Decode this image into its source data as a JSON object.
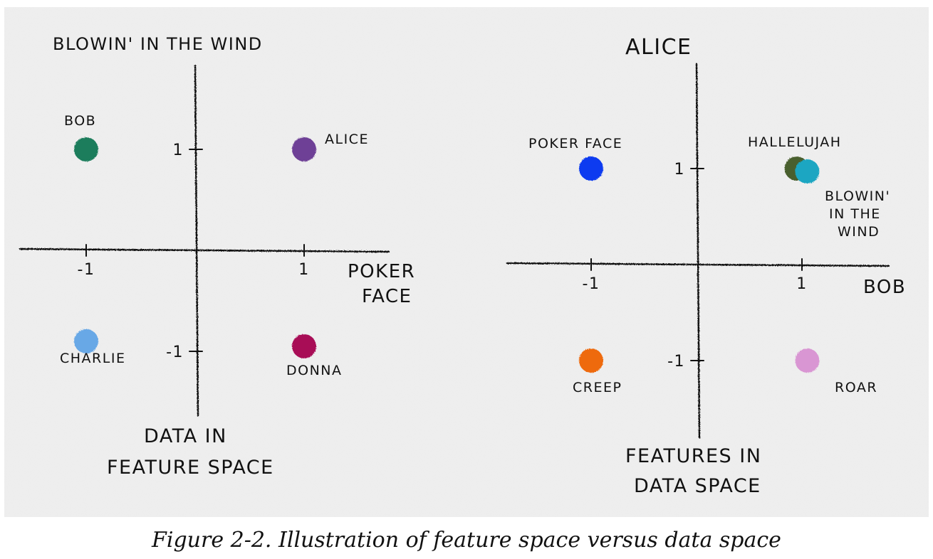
{
  "caption": "Figure 2-2. Illustration of feature space versus data space",
  "chart_data": [
    {
      "type": "scatter",
      "title": "DATA IN FEATURE SPACE",
      "title_lines": [
        "DATA  IN",
        "FEATURE SPACE"
      ],
      "xlabel": "POKER FACE",
      "xlabel_lines": [
        "POKER",
        "FACE"
      ],
      "ylabel": "BLOWIN' IN THE WIND",
      "xlim": [
        -1.5,
        1.5
      ],
      "ylim": [
        -1.6,
        1.8
      ],
      "x_ticks": [
        {
          "value": -1,
          "label": "-1"
        },
        {
          "value": 1,
          "label": "1"
        }
      ],
      "y_ticks": [
        {
          "value": 1,
          "label": "1"
        },
        {
          "value": -1,
          "label": "-1"
        }
      ],
      "points": [
        {
          "label": "BOB",
          "x": -1.0,
          "y": 1.0,
          "color": "#1e7d5c"
        },
        {
          "label": "ALICE",
          "x": 1.0,
          "y": 1.0,
          "color": "#6e3f96"
        },
        {
          "label": "CHARLIE",
          "x": -1.0,
          "y": -0.9,
          "color": "#68a8e6"
        },
        {
          "label": "DONNA",
          "x": 1.0,
          "y": -0.95,
          "color": "#a80b57"
        }
      ],
      "grid": false
    },
    {
      "type": "scatter",
      "title": "FEATURES IN DATA SPACE",
      "title_lines": [
        "FEATURES IN",
        "DATA SPACE"
      ],
      "xlabel": "BOB",
      "ylabel": "ALICE",
      "xlim": [
        -1.8,
        1.8
      ],
      "ylim": [
        -1.8,
        2.0
      ],
      "x_ticks": [
        {
          "value": -1,
          "label": "-1"
        },
        {
          "value": 1,
          "label": "1"
        }
      ],
      "y_ticks": [
        {
          "value": 1,
          "label": "1"
        },
        {
          "value": -1,
          "label": "-1"
        }
      ],
      "points": [
        {
          "label": "POKER FACE",
          "x": -1.0,
          "y": 1.0,
          "color": "#0a3bf0"
        },
        {
          "label": "HALLELUJAH",
          "x": 0.95,
          "y": 1.0,
          "color": "#485f2d"
        },
        {
          "label": "BLOWIN' IN THE WIND",
          "label_lines": [
            "BLOWIN'",
            "IN THE",
            "WIND"
          ],
          "x": 1.05,
          "y": 0.97,
          "color": "#1aa6c2"
        },
        {
          "label": "CREEP",
          "x": -1.0,
          "y": -1.0,
          "color": "#ee6a0f"
        },
        {
          "label": "ROAR",
          "x": 1.05,
          "y": -1.0,
          "color": "#d996d3"
        }
      ],
      "grid": false
    }
  ]
}
